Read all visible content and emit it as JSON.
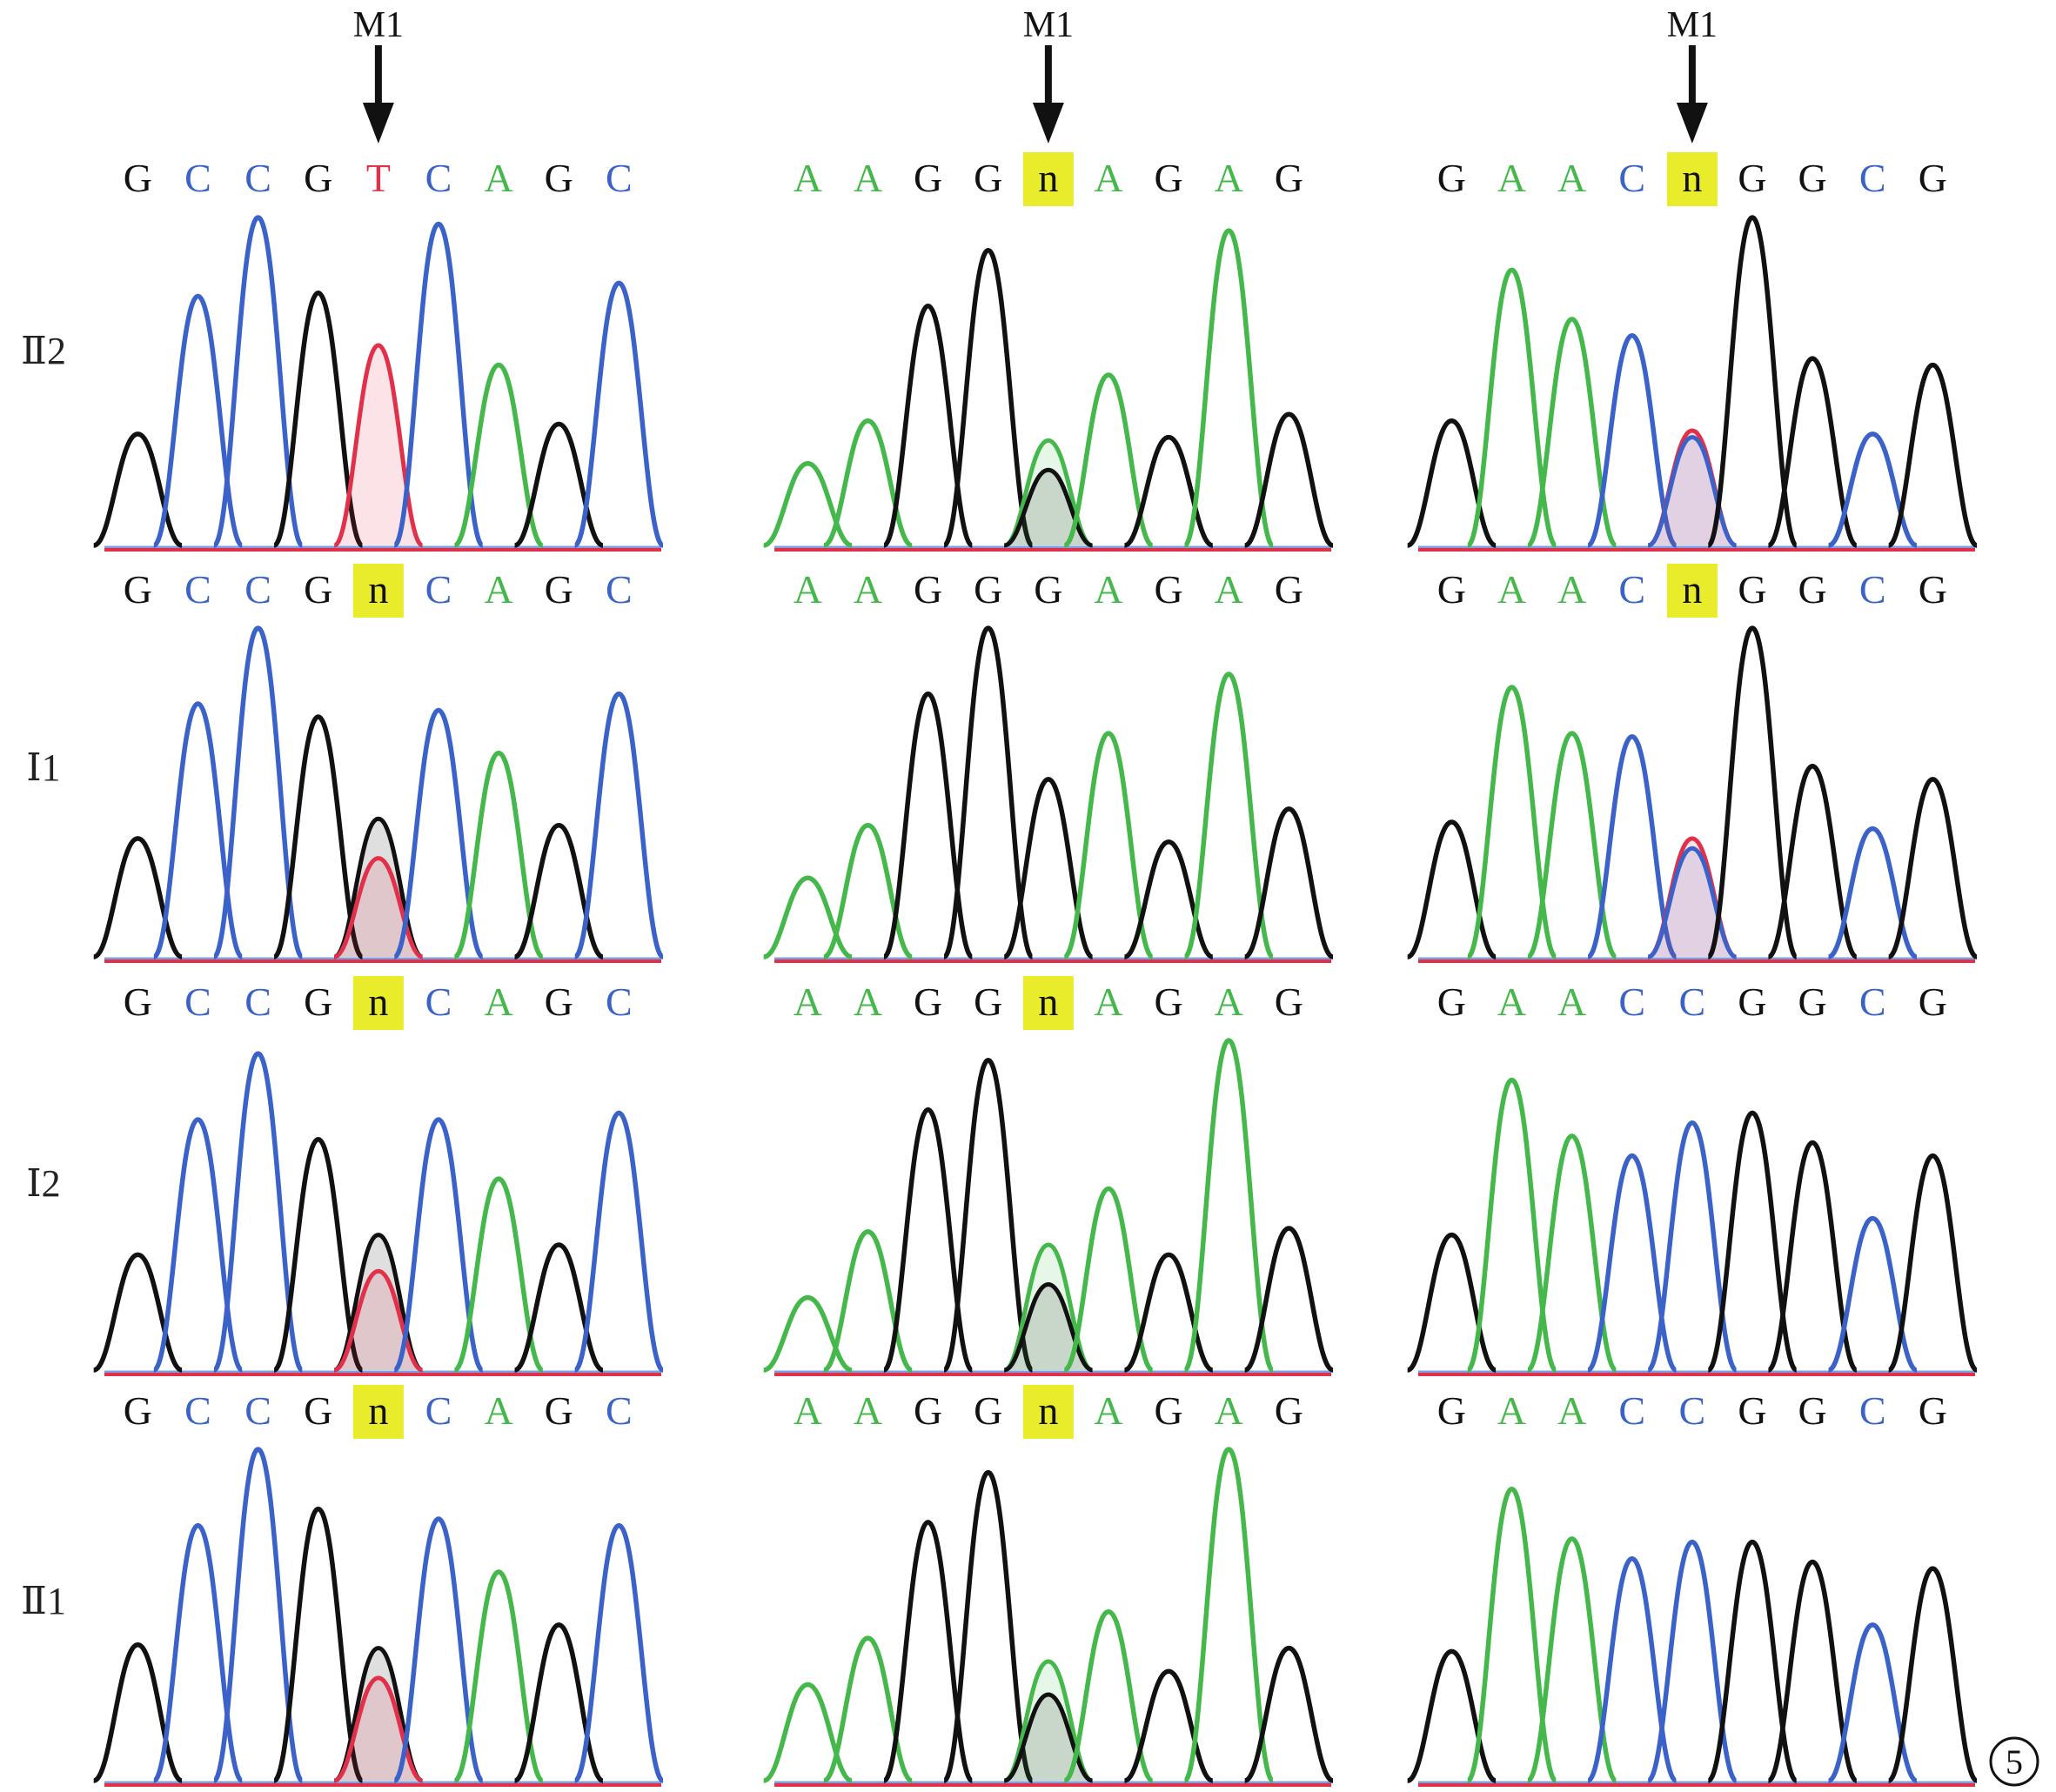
{
  "colors": {
    "G": "#111111",
    "C": "#3a62c8",
    "A": "#44b84a",
    "T": "#e0304a",
    "n": "#111111",
    "highlight": "#e8ec2a"
  },
  "marker_label": "M1",
  "figure_number": "5",
  "rows": [
    {
      "label": "Ⅱ2",
      "panels": [
        {
          "bases": [
            "G",
            "C",
            "C",
            "G",
            "T",
            "C",
            "A",
            "G",
            "C"
          ],
          "marked": 4,
          "highlight": [],
          "heights": [
            0.34,
            0.76,
            1.0,
            0.77,
            0.61,
            0.98,
            0.55,
            0.37,
            0.8
          ],
          "mix": [
            {
              "i": 4,
              "base": "T",
              "h": 0.61
            }
          ]
        },
        {
          "bases": [
            "A",
            "A",
            "G",
            "G",
            "n",
            "A",
            "G",
            "A",
            "G"
          ],
          "marked": 4,
          "highlight": [
            4
          ],
          "heights": [
            0.25,
            0.38,
            0.73,
            0.9,
            0.32,
            0.52,
            0.33,
            0.96,
            0.4
          ],
          "mix": [
            {
              "i": 4,
              "base": "A",
              "h": 0.32
            },
            {
              "i": 4,
              "base": "G",
              "h": 0.23
            }
          ]
        },
        {
          "bases": [
            "G",
            "A",
            "A",
            "C",
            "n",
            "G",
            "G",
            "C",
            "G"
          ],
          "marked": 4,
          "highlight": [
            4
          ],
          "heights": [
            0.38,
            0.84,
            0.69,
            0.64,
            0.33,
            1.0,
            0.57,
            0.34,
            0.55
          ],
          "mix": [
            {
              "i": 4,
              "base": "T",
              "h": 0.35
            },
            {
              "i": 4,
              "base": "C",
              "h": 0.33
            }
          ]
        }
      ]
    },
    {
      "label": "Ⅰ1",
      "panels": [
        {
          "bases": [
            "G",
            "C",
            "C",
            "G",
            "n",
            "C",
            "A",
            "G",
            "C"
          ],
          "marked": null,
          "highlight": [
            4
          ],
          "heights": [
            0.36,
            0.77,
            1.0,
            0.73,
            0.42,
            0.75,
            0.62,
            0.4,
            0.8
          ],
          "mix": [
            {
              "i": 4,
              "base": "G",
              "h": 0.42
            },
            {
              "i": 4,
              "base": "T",
              "h": 0.3
            }
          ]
        },
        {
          "bases": [
            "A",
            "A",
            "G",
            "G",
            "G",
            "A",
            "G",
            "A",
            "G"
          ],
          "marked": null,
          "highlight": [],
          "heights": [
            0.24,
            0.4,
            0.8,
            1.0,
            0.54,
            0.68,
            0.35,
            0.86,
            0.45
          ],
          "mix": []
        },
        {
          "bases": [
            "G",
            "A",
            "A",
            "C",
            "n",
            "G",
            "G",
            "C",
            "G"
          ],
          "marked": null,
          "highlight": [
            4
          ],
          "heights": [
            0.41,
            0.82,
            0.68,
            0.67,
            0.36,
            1.0,
            0.58,
            0.39,
            0.54
          ],
          "mix": [
            {
              "i": 4,
              "base": "T",
              "h": 0.36
            },
            {
              "i": 4,
              "base": "C",
              "h": 0.33
            }
          ]
        }
      ]
    },
    {
      "label": "Ⅰ2",
      "panels": [
        {
          "bases": [
            "G",
            "C",
            "C",
            "G",
            "n",
            "C",
            "A",
            "G",
            "C"
          ],
          "marked": null,
          "highlight": [
            4
          ],
          "heights": [
            0.35,
            0.76,
            0.96,
            0.7,
            0.41,
            0.76,
            0.58,
            0.38,
            0.78
          ],
          "mix": [
            {
              "i": 4,
              "base": "G",
              "h": 0.41
            },
            {
              "i": 4,
              "base": "T",
              "h": 0.3
            }
          ]
        },
        {
          "bases": [
            "A",
            "A",
            "G",
            "G",
            "n",
            "A",
            "G",
            "A",
            "G"
          ],
          "marked": null,
          "highlight": [
            4
          ],
          "heights": [
            0.22,
            0.42,
            0.79,
            0.94,
            0.38,
            0.55,
            0.35,
            1.0,
            0.43
          ],
          "mix": [
            {
              "i": 4,
              "base": "A",
              "h": 0.38
            },
            {
              "i": 4,
              "base": "G",
              "h": 0.26
            }
          ]
        },
        {
          "bases": [
            "G",
            "A",
            "A",
            "C",
            "C",
            "G",
            "G",
            "C",
            "G"
          ],
          "marked": null,
          "highlight": [],
          "heights": [
            0.41,
            0.88,
            0.71,
            0.65,
            0.75,
            0.78,
            0.69,
            0.46,
            0.65
          ],
          "mix": []
        }
      ]
    },
    {
      "label": "Ⅱ1",
      "panels": [
        {
          "bases": [
            "G",
            "C",
            "C",
            "G",
            "n",
            "C",
            "A",
            "G",
            "C"
          ],
          "marked": null,
          "highlight": [
            4
          ],
          "heights": [
            0.41,
            0.77,
            1.0,
            0.82,
            0.4,
            0.79,
            0.63,
            0.47,
            0.77
          ],
          "mix": [
            {
              "i": 4,
              "base": "G",
              "h": 0.4
            },
            {
              "i": 4,
              "base": "T",
              "h": 0.31
            }
          ]
        },
        {
          "bases": [
            "A",
            "A",
            "G",
            "G",
            "n",
            "A",
            "G",
            "A",
            "G"
          ],
          "marked": null,
          "highlight": [
            4
          ],
          "heights": [
            0.29,
            0.43,
            0.78,
            0.93,
            0.36,
            0.51,
            0.33,
            1.0,
            0.4
          ],
          "mix": [
            {
              "i": 4,
              "base": "A",
              "h": 0.36
            },
            {
              "i": 4,
              "base": "G",
              "h": 0.26
            }
          ]
        },
        {
          "bases": [
            "G",
            "A",
            "A",
            "C",
            "C",
            "G",
            "G",
            "C",
            "G"
          ],
          "marked": null,
          "highlight": [],
          "heights": [
            0.39,
            0.88,
            0.73,
            0.67,
            0.72,
            0.72,
            0.66,
            0.47,
            0.64
          ],
          "mix": []
        }
      ]
    }
  ]
}
